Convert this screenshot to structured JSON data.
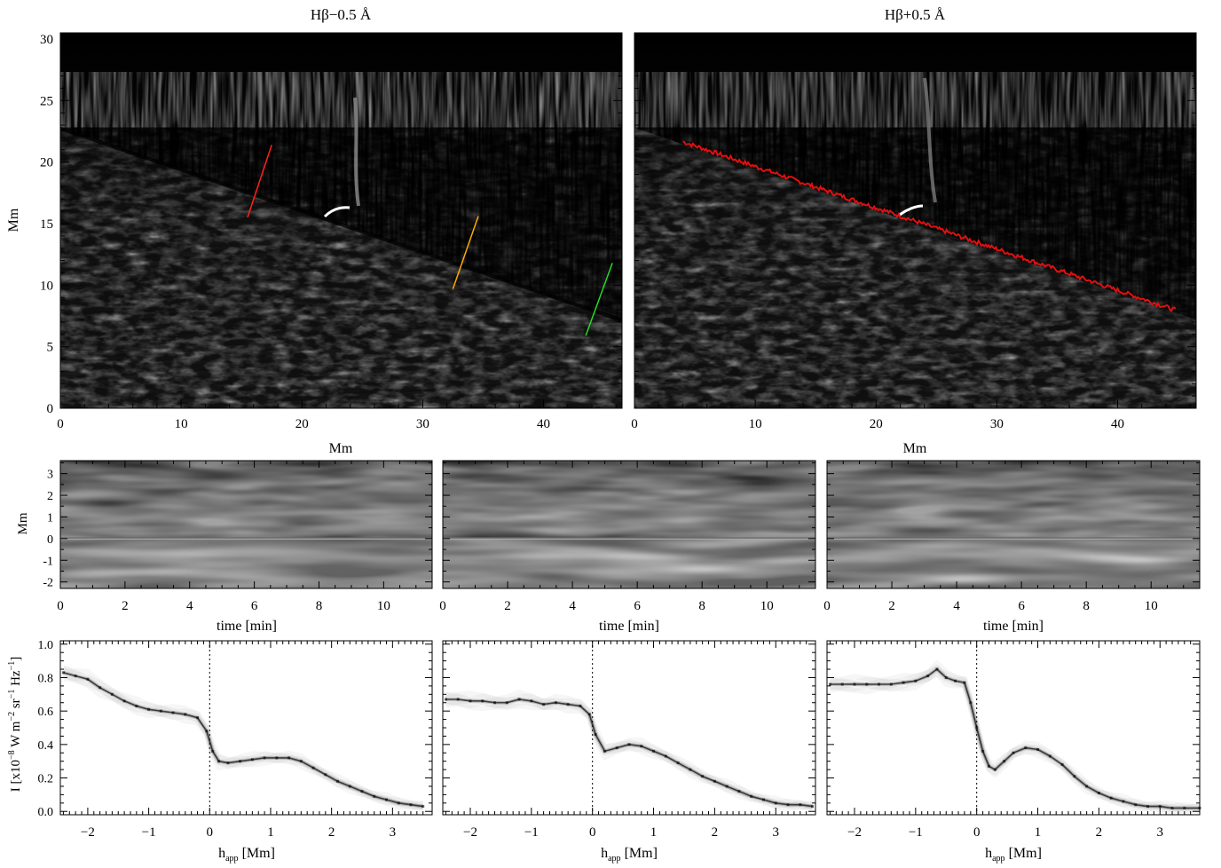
{
  "top_panels": {
    "left": {
      "title_main": "Hβ",
      "title_rest": "−0.5 Å",
      "xlabel": "Mm",
      "ylabel": "Mm",
      "xticks": [
        0,
        10,
        20,
        30,
        40
      ],
      "yticks": [
        0,
        5,
        10,
        15,
        20,
        25,
        30
      ],
      "cuts": [
        {
          "color": "#ff2020",
          "x": [
            15.5,
            17.5
          ],
          "y": [
            15.5,
            21.4
          ]
        },
        {
          "color": "#ffaa00",
          "x": [
            32.5,
            34.6
          ],
          "y": [
            9.7,
            15.6
          ]
        },
        {
          "color": "#22dd22",
          "x": [
            43.5,
            45.7
          ],
          "y": [
            5.9,
            11.8
          ]
        }
      ]
    },
    "right": {
      "title_main": "Hβ",
      "title_rest": "+0.5 Å",
      "xlabel": "Mm",
      "xticks": [
        0,
        10,
        20,
        30,
        40
      ],
      "limb_trace_color": "#e01010"
    },
    "xlim": [
      0,
      46.5
    ],
    "ylim": [
      0,
      30.5
    ],
    "limb": {
      "x": [
        0,
        46.5
      ],
      "y": [
        22.8,
        7.2
      ]
    }
  },
  "middle_panels": {
    "ylabel": "Mm",
    "xlabel": "time [min]",
    "xticks": [
      0,
      2,
      4,
      6,
      8,
      10
    ],
    "yticks": [
      3,
      2,
      1,
      0,
      -1,
      -2
    ],
    "xlim": [
      0,
      11.5
    ],
    "ylim": [
      -2.3,
      3.6
    ]
  },
  "bottom_panels": {
    "ylabel_parts": {
      "main": "I [x10",
      "exp1": "−8",
      "mid": " W m",
      "exp2": "−2",
      "mid2": " sr",
      "exp3": "−1",
      "mid3": " Hz",
      "exp4": "−1",
      "end": "]"
    },
    "xlabel_main": "h",
    "xlabel_sub": "app",
    "xlabel_end": " [Mm]",
    "xticks": [
      -2,
      -1,
      0,
      1,
      2,
      3
    ],
    "yticks": [
      0.0,
      0.2,
      0.4,
      0.6,
      0.8,
      1.0
    ],
    "xlim": [
      -2.45,
      3.65
    ],
    "ylim": [
      -0.02,
      1.02
    ]
  },
  "chart_data": [
    {
      "type": "line",
      "panel": "profile-1",
      "xlabel": "h_app [Mm]",
      "ylabel": "I [x10^-8 W m^-2 sr^-1 Hz^-1]",
      "x": [
        -2.4,
        -2.2,
        -2.0,
        -1.8,
        -1.6,
        -1.4,
        -1.2,
        -1.0,
        -0.8,
        -0.6,
        -0.4,
        -0.2,
        -0.05,
        0.05,
        0.15,
        0.3,
        0.5,
        0.7,
        0.9,
        1.1,
        1.3,
        1.5,
        1.7,
        1.9,
        2.1,
        2.3,
        2.5,
        2.7,
        2.9,
        3.1,
        3.3,
        3.5
      ],
      "values": [
        0.83,
        0.81,
        0.79,
        0.74,
        0.7,
        0.66,
        0.63,
        0.61,
        0.6,
        0.59,
        0.58,
        0.56,
        0.48,
        0.36,
        0.3,
        0.29,
        0.3,
        0.31,
        0.32,
        0.32,
        0.32,
        0.3,
        0.26,
        0.22,
        0.18,
        0.15,
        0.12,
        0.09,
        0.07,
        0.05,
        0.04,
        0.03
      ],
      "xlim": [
        -2.45,
        3.65
      ],
      "ylim": [
        0,
        1.0
      ]
    },
    {
      "type": "line",
      "panel": "profile-2",
      "xlabel": "h_app [Mm]",
      "x": [
        -2.4,
        -2.2,
        -2.0,
        -1.8,
        -1.6,
        -1.4,
        -1.2,
        -1.0,
        -0.8,
        -0.6,
        -0.4,
        -0.2,
        -0.05,
        0.05,
        0.2,
        0.4,
        0.6,
        0.8,
        1.0,
        1.2,
        1.4,
        1.6,
        1.8,
        2.0,
        2.2,
        2.4,
        2.6,
        2.8,
        3.0,
        3.2,
        3.4,
        3.6
      ],
      "values": [
        0.67,
        0.67,
        0.66,
        0.66,
        0.65,
        0.65,
        0.67,
        0.66,
        0.64,
        0.65,
        0.64,
        0.63,
        0.58,
        0.46,
        0.36,
        0.38,
        0.4,
        0.39,
        0.36,
        0.33,
        0.29,
        0.25,
        0.21,
        0.18,
        0.15,
        0.12,
        0.09,
        0.07,
        0.05,
        0.04,
        0.04,
        0.03
      ],
      "xlim": [
        -2.45,
        3.65
      ],
      "ylim": [
        0,
        1.0
      ]
    },
    {
      "type": "line",
      "panel": "profile-3",
      "xlabel": "h_app [Mm]",
      "x": [
        -2.4,
        -2.2,
        -2.0,
        -1.8,
        -1.6,
        -1.4,
        -1.2,
        -1.0,
        -0.8,
        -0.65,
        -0.5,
        -0.35,
        -0.2,
        -0.1,
        0.0,
        0.1,
        0.2,
        0.3,
        0.45,
        0.6,
        0.8,
        1.0,
        1.2,
        1.4,
        1.6,
        1.8,
        2.0,
        2.2,
        2.4,
        2.6,
        2.8,
        3.0,
        3.2,
        3.4,
        3.65
      ],
      "values": [
        0.76,
        0.76,
        0.76,
        0.76,
        0.76,
        0.76,
        0.77,
        0.78,
        0.81,
        0.85,
        0.8,
        0.78,
        0.77,
        0.65,
        0.5,
        0.36,
        0.27,
        0.25,
        0.3,
        0.35,
        0.38,
        0.37,
        0.33,
        0.28,
        0.21,
        0.15,
        0.11,
        0.08,
        0.06,
        0.04,
        0.03,
        0.03,
        0.02,
        0.02,
        0.02
      ],
      "xlim": [
        -2.45,
        3.65
      ],
      "ylim": [
        0,
        1.0
      ]
    }
  ]
}
